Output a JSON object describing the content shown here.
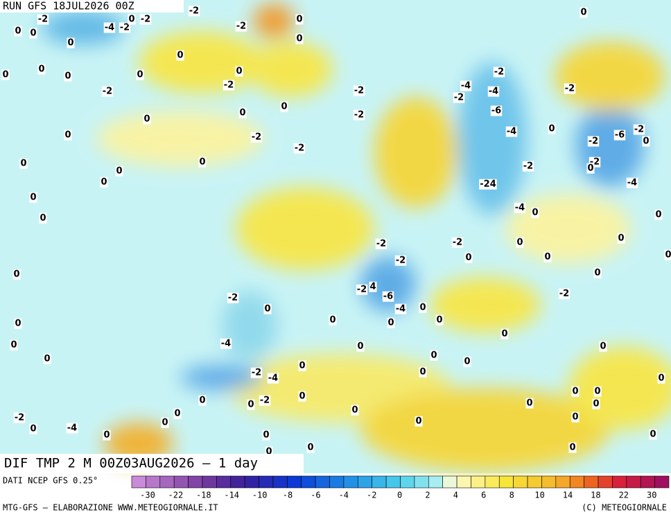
{
  "header": {
    "run": "RUN GFS 18JUL2026 00Z"
  },
  "map": {
    "contour_labels": [
      -2,
      -4,
      -2,
      0,
      -2,
      -2,
      0,
      0,
      0,
      0,
      0,
      0,
      -2,
      0,
      0,
      -2,
      0,
      0,
      0,
      -2,
      0,
      0,
      0,
      -2,
      -2,
      0,
      0,
      0,
      0,
      0,
      0,
      0,
      -2,
      -2,
      0,
      -2,
      -4,
      -2,
      -4,
      -6,
      -2,
      -4,
      0,
      -2,
      -6,
      -2,
      0,
      -2,
      -2,
      0,
      -4,
      -24,
      -4,
      0,
      0,
      -2,
      -2,
      0,
      0,
      -2,
      0,
      0,
      0,
      0,
      0,
      -2,
      4,
      -6,
      -2,
      0,
      -4,
      0,
      -2,
      0,
      0,
      0,
      0,
      -4,
      0,
      0,
      0,
      0,
      0,
      0,
      0,
      0,
      -2,
      -4,
      0,
      0,
      0,
      0,
      -2,
      0,
      0,
      0,
      0,
      0,
      -2,
      0,
      0,
      -4,
      0,
      0,
      0,
      0,
      0,
      0,
      0,
      0,
      0,
      0
    ]
  },
  "footer": {
    "title": "DIF TMP 2 M 00Z03AUG2026 – 1 day",
    "source": "DATI NCEP GFS 0.25°",
    "credit": "MTG-GFS – ELABORAZIONE WWW.METEOGIORNALE.IT",
    "copyright": "(C) METEOGIORNALE"
  },
  "legend": {
    "ticks": [
      -30,
      -22,
      -18,
      -14,
      -10,
      -8,
      -6,
      -4,
      -2,
      0,
      2,
      4,
      6,
      8,
      10,
      14,
      18,
      22,
      30
    ]
  }
}
